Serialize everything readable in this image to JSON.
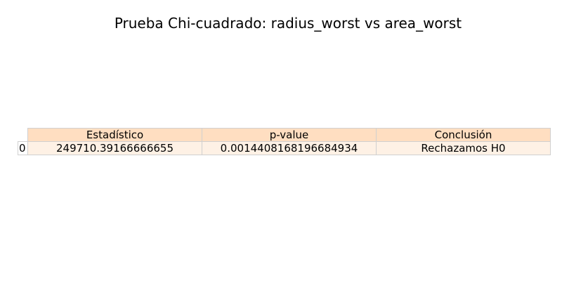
{
  "chart_data": {
    "type": "table",
    "title": "Prueba Chi-cuadrado: radius_worst vs area_worst",
    "columns": [
      "Estadístico",
      "p-value",
      "Conclusión"
    ],
    "rows": [
      {
        "index": "0",
        "cells": [
          "249710.39166666655",
          "0.0014408168196684934",
          "Rechazamos H0"
        ]
      }
    ]
  },
  "colors": {
    "header_bg": "#ffdec1",
    "cell_bg": "#fef1e5",
    "border": "#d0d0d0"
  }
}
